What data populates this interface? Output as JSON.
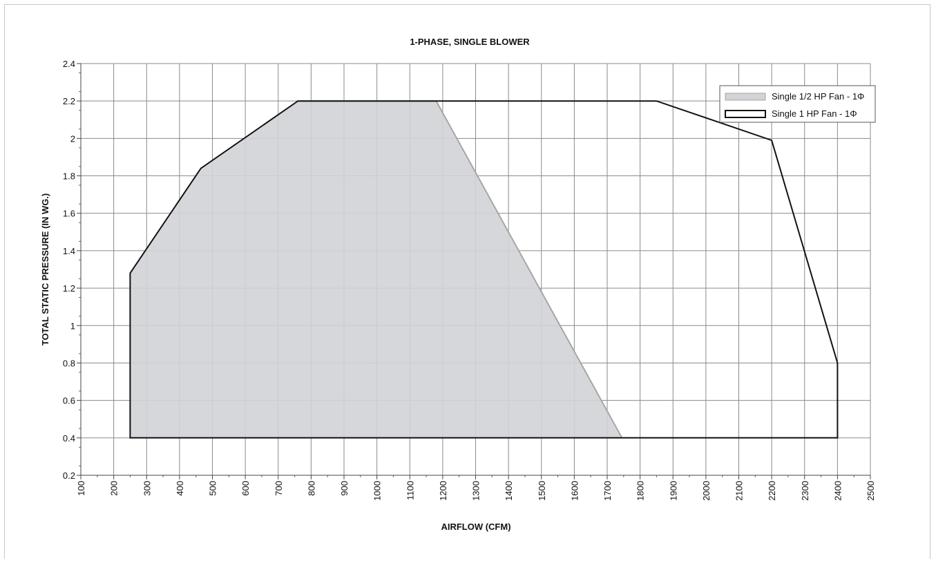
{
  "chart_data": {
    "type": "area",
    "title": "1-PHASE, SINGLE BLOWER",
    "xlabel": "AIRFLOW (CFM)",
    "ylabel": "TOTAL STATIC PRESSURE (IN WG.)",
    "xlim": [
      100,
      2500
    ],
    "ylim": [
      0.2,
      2.4
    ],
    "x_ticks": [
      "100",
      "200",
      "300",
      "400",
      "500",
      "600",
      "700",
      "800",
      "900",
      "1000",
      "1100",
      "1200",
      "1300",
      "1400",
      "1500",
      "1600",
      "1700",
      "1800",
      "1900",
      "2000",
      "2100",
      "2200",
      "2300",
      "2400",
      "2500"
    ],
    "y_ticks": [
      "0.2",
      "0.4",
      "0.6",
      "0.8",
      "1",
      "1.2",
      "1.4",
      "1.6",
      "1.8",
      "2",
      "2.2",
      "2.4"
    ],
    "grid": true,
    "legend_position": "top-right",
    "series": [
      {
        "name": "Single 1/2 HP Fan - 1Φ",
        "style": "filled",
        "color": "#d1d3d6",
        "edge_color": "#a6a6a6",
        "points": [
          [
            250,
            0.4
          ],
          [
            250,
            1.28
          ],
          [
            465,
            1.84
          ],
          [
            760,
            2.2
          ],
          [
            1180,
            2.2
          ],
          [
            1745,
            0.4
          ]
        ]
      },
      {
        "name": "Single 1 HP Fan - 1Φ",
        "style": "outline",
        "color": "#111111",
        "points": [
          [
            250,
            0.4
          ],
          [
            250,
            1.28
          ],
          [
            465,
            1.84
          ],
          [
            760,
            2.2
          ],
          [
            1850,
            2.2
          ],
          [
            2200,
            1.99
          ],
          [
            2400,
            0.8
          ],
          [
            2400,
            0.4
          ]
        ]
      }
    ]
  }
}
